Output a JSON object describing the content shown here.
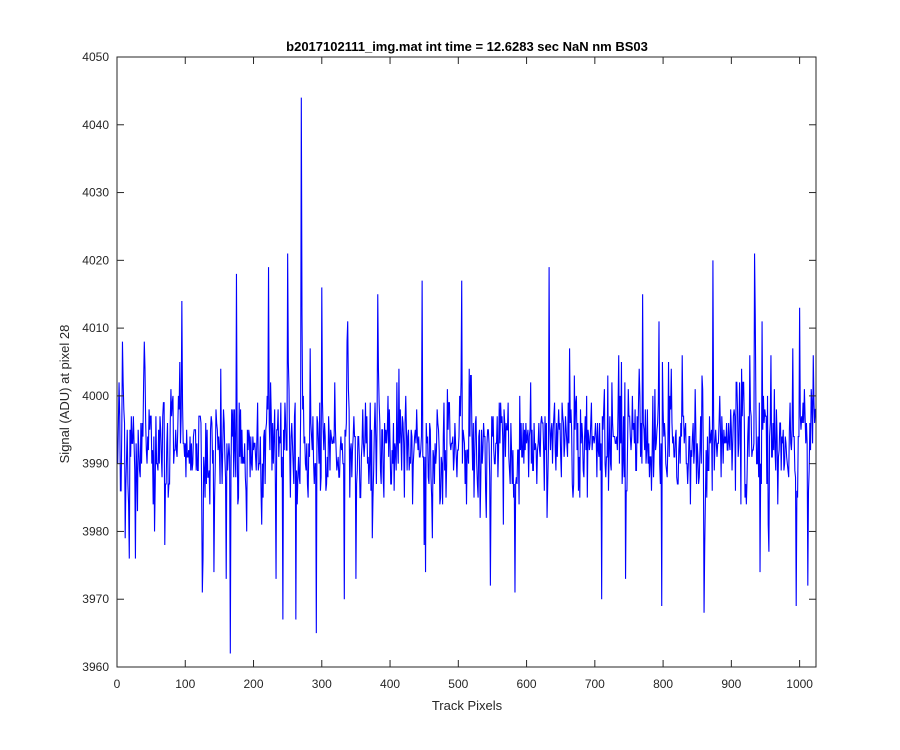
{
  "chart_data": {
    "type": "line",
    "title": "b2017102111_img.mat int time = 12.6283 sec  NaN nm BS03",
    "xlabel": "Track Pixels",
    "ylabel": "Signal (ADU) at pixel 28",
    "xlim": [
      0,
      1024
    ],
    "ylim": [
      3960,
      4050
    ],
    "xticks": [
      "0",
      "100",
      "200",
      "300",
      "400",
      "500",
      "600",
      "700",
      "800",
      "900",
      "1000"
    ],
    "yticks": [
      "3960",
      "3970",
      "3980",
      "3990",
      "4000",
      "4010",
      "4020",
      "4030",
      "4040",
      "4050"
    ],
    "grid": false,
    "legend": "none",
    "series_color": "#0000ff",
    "series": [
      {
        "x_start": 1,
        "x_step": 1,
        "length": 1024,
        "mean": 3993,
        "noise_sd": 6.5,
        "keypoints": [
          [
            1,
            3990
          ],
          [
            3,
            4002
          ],
          [
            5,
            3986
          ],
          [
            8,
            4008
          ],
          [
            12,
            3979
          ],
          [
            18,
            3976
          ],
          [
            27,
            3976
          ],
          [
            40,
            4008
          ],
          [
            55,
            3980
          ],
          [
            70,
            3978
          ],
          [
            95,
            4014
          ],
          [
            125,
            3971
          ],
          [
            142,
            3974
          ],
          [
            160,
            3973
          ],
          [
            166,
            3962
          ],
          [
            175,
            4018
          ],
          [
            222,
            4019
          ],
          [
            233,
            3973
          ],
          [
            243,
            3967
          ],
          [
            250,
            4021
          ],
          [
            262,
            3967
          ],
          [
            270,
            4044
          ],
          [
            292,
            3965
          ],
          [
            300,
            4016
          ],
          [
            333,
            3970
          ],
          [
            350,
            3973
          ],
          [
            382,
            4015
          ],
          [
            447,
            4017
          ],
          [
            452,
            3974
          ],
          [
            505,
            4017
          ],
          [
            547,
            3972
          ],
          [
            583,
            3971
          ],
          [
            633,
            4019
          ],
          [
            663,
            4007
          ],
          [
            710,
            3970
          ],
          [
            735,
            4006
          ],
          [
            745,
            3973
          ],
          [
            770,
            4015
          ],
          [
            798,
            3969
          ],
          [
            808,
            4005
          ],
          [
            828,
            4006
          ],
          [
            860,
            3968
          ],
          [
            873,
            4020
          ],
          [
            915,
            4004
          ],
          [
            934,
            4021
          ],
          [
            942,
            3974
          ],
          [
            945,
            4011
          ],
          [
            990,
            4007
          ],
          [
            995,
            3969
          ],
          [
            1000,
            4013
          ],
          [
            1012,
            3972
          ],
          [
            1020,
            4006
          ]
        ]
      }
    ]
  }
}
